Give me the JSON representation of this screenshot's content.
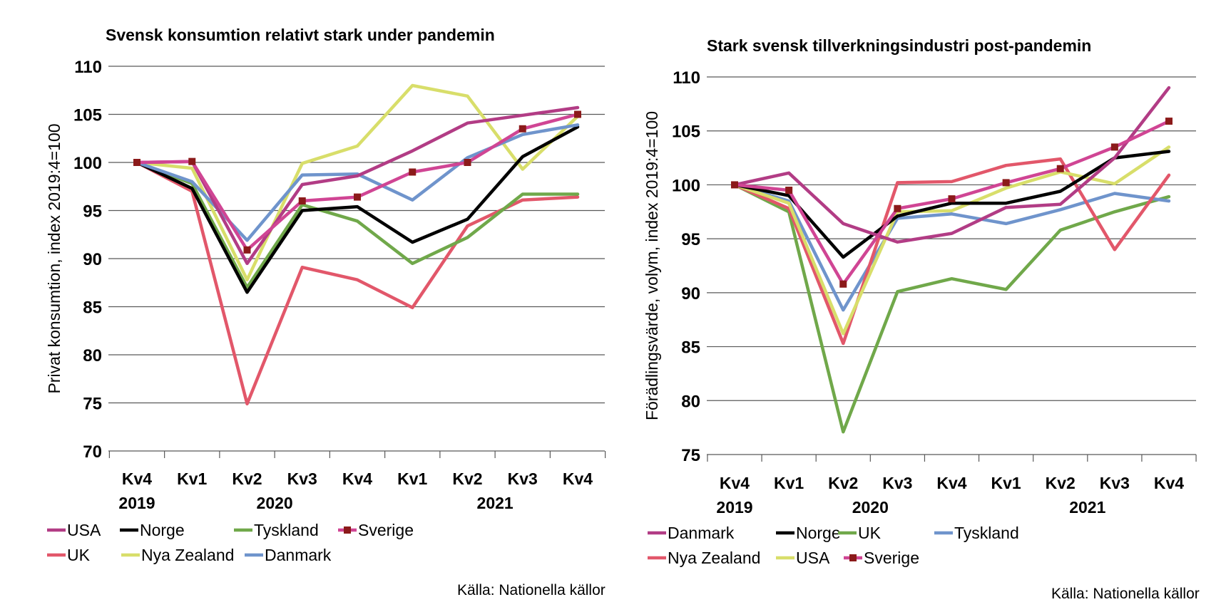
{
  "source_left": "Källa: Nationella källor",
  "source_right": "Källa: Nationella källor",
  "chart_data": [
    {
      "type": "line",
      "title": "Svensk konsumtion relativt stark under pandemin",
      "xlabel": "",
      "ylabel": "Privat konsumtion, index 2019:4=100",
      "ylim": [
        70,
        110
      ],
      "yticks": [
        70,
        75,
        80,
        85,
        90,
        95,
        100,
        105,
        110
      ],
      "grid": true,
      "legend_position": "bottom",
      "categories": [
        "Kv4",
        "Kv1",
        "Kv2",
        "Kv3",
        "Kv4",
        "Kv1",
        "Kv2",
        "Kv3",
        "Kv4"
      ],
      "year_labels": [
        {
          "label": "2019",
          "index": 0
        },
        {
          "label": "2020",
          "index": 2.5
        },
        {
          "label": "2021",
          "index": 6.5
        }
      ],
      "legend_order": [
        "USA",
        "Norge",
        "Tyskland",
        "Sverige",
        "UK",
        "Nya Zealand",
        "Danmark"
      ],
      "draw_order": [
        "UK",
        "Nya Zealand",
        "Tyskland",
        "Norge",
        "Danmark",
        "USA",
        "Sverige"
      ],
      "series": [
        {
          "name": "USA",
          "color": "#b23c85",
          "marker": false,
          "values": [
            100,
            100.1,
            89.5,
            97.7,
            98.6,
            101.2,
            104.1,
            104.9,
            105.7
          ]
        },
        {
          "name": "Norge",
          "color": "#000000",
          "marker": false,
          "values": [
            100,
            97.3,
            86.5,
            95.0,
            95.4,
            91.7,
            94.1,
            100.6,
            103.7
          ]
        },
        {
          "name": "Tyskland",
          "color": "#70a84a",
          "marker": false,
          "values": [
            100,
            97.8,
            87.0,
            95.6,
            93.9,
            89.5,
            92.2,
            96.7,
            96.7
          ]
        },
        {
          "name": "Sverige",
          "color": "#8b1a1a",
          "line_color": "#d04594",
          "marker": true,
          "values": [
            100,
            100.1,
            90.9,
            96.0,
            96.4,
            99.0,
            100.0,
            103.5,
            105.0
          ]
        },
        {
          "name": "UK",
          "color": "#e2576a",
          "marker": false,
          "values": [
            100,
            97.0,
            74.9,
            89.1,
            87.8,
            84.9,
            93.4,
            96.1,
            96.4
          ]
        },
        {
          "name": "Nya Zealand",
          "color": "#d8de6a",
          "marker": false,
          "values": [
            100,
            99.4,
            87.8,
            99.9,
            101.7,
            108.0,
            106.9,
            99.3,
            104.8
          ]
        },
        {
          "name": "Danmark",
          "color": "#6f94cc",
          "marker": false,
          "values": [
            100,
            98.0,
            91.9,
            98.7,
            98.8,
            96.1,
            100.5,
            102.9,
            103.9
          ]
        }
      ]
    },
    {
      "type": "line",
      "title": "Stark svensk tillverkningsindustri post-pandemin",
      "xlabel": "",
      "ylabel": "Förädlingsvärde, volym, index 2019:4=100",
      "ylim": [
        75,
        110
      ],
      "yticks": [
        75,
        80,
        85,
        90,
        95,
        100,
        105,
        110
      ],
      "grid": true,
      "legend_position": "bottom",
      "categories": [
        "Kv4",
        "Kv1",
        "Kv2",
        "Kv3",
        "Kv4",
        "Kv1",
        "Kv2",
        "Kv3",
        "Kv4"
      ],
      "year_labels": [
        {
          "label": "2019",
          "index": 0
        },
        {
          "label": "2020",
          "index": 2.5
        },
        {
          "label": "2021",
          "index": 6.5
        }
      ],
      "legend_order": [
        "Danmark",
        "Norge",
        "UK",
        "Tyskland",
        "Nya Zealand",
        "USA",
        "Sverige"
      ],
      "draw_order": [
        "UK",
        "Tyskland",
        "Nya Zealand",
        "USA",
        "Norge",
        "Danmark",
        "Sverige"
      ],
      "series": [
        {
          "name": "Danmark",
          "color": "#b23c85",
          "marker": false,
          "values": [
            100,
            101.1,
            96.4,
            94.7,
            95.5,
            97.9,
            98.2,
            102.5,
            109.0
          ]
        },
        {
          "name": "Norge",
          "color": "#000000",
          "marker": false,
          "values": [
            100,
            99.0,
            93.3,
            97.1,
            98.3,
            98.3,
            99.4,
            102.5,
            103.1
          ]
        },
        {
          "name": "UK",
          "color": "#70a84a",
          "marker": false,
          "values": [
            100,
            97.5,
            77.1,
            90.1,
            91.3,
            90.3,
            95.8,
            97.5,
            98.9
          ]
        },
        {
          "name": "Tyskland",
          "color": "#6f94cc",
          "marker": false,
          "values": [
            100,
            98.5,
            88.4,
            96.9,
            97.3,
            96.4,
            97.7,
            99.2,
            98.5
          ]
        },
        {
          "name": "Nya Zealand",
          "color": "#e2576a",
          "marker": false,
          "values": [
            100,
            97.8,
            85.3,
            100.2,
            100.3,
            101.8,
            102.4,
            94.0,
            100.9
          ]
        },
        {
          "name": "USA",
          "color": "#d8de6a",
          "marker": false,
          "values": [
            100,
            98.3,
            86.2,
            97.5,
            97.6,
            99.7,
            101.2,
            100.1,
            103.5
          ]
        },
        {
          "name": "Sverige",
          "color": "#8b1a1a",
          "line_color": "#d04594",
          "marker": true,
          "values": [
            100,
            99.5,
            90.8,
            97.8,
            98.7,
            100.2,
            101.5,
            103.5,
            105.9
          ]
        }
      ]
    }
  ]
}
